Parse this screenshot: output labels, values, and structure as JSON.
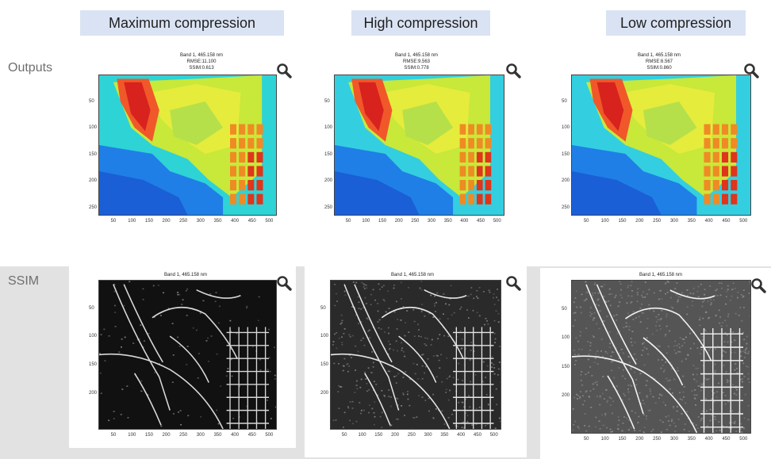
{
  "headers": [
    "Maximum compression",
    "High compression",
    "Low compression"
  ],
  "row_labels": {
    "outputs": "Outputs",
    "ssim": "SSIM"
  },
  "outputs": [
    {
      "band": "Band 1, 465.158 nm",
      "rmse": "RMSE:11.100",
      "ssim": "SSIM:0.613"
    },
    {
      "band": "Band 1, 465.158 nm",
      "rmse": "RMSE:9.563",
      "ssim": "SSIM:0.778"
    },
    {
      "band": "Band 1, 465.158 nm",
      "rmse": "RMSE:6.567",
      "ssim": "SSIM:0.860"
    }
  ],
  "ssim_maps": [
    {
      "band": "Band 1, 465.158 nm"
    },
    {
      "band": "Band 1, 465.158 nm"
    },
    {
      "band": "Band 1, 465.158 nm"
    }
  ],
  "axes": {
    "x_ticks": [
      "50",
      "100",
      "150",
      "200",
      "250",
      "300",
      "350",
      "400",
      "450",
      "500"
    ],
    "y_ticks_outputs": [
      "50",
      "100",
      "150",
      "200",
      "250"
    ],
    "y_ticks_ssim": [
      "50",
      "100",
      "150",
      "200"
    ]
  },
  "icons": {
    "zoom": "magnifier-icon"
  },
  "colors": {
    "header_bg": "#dae3f3",
    "band_gray": "#e2e2e2",
    "label_gray": "#6f6f6f"
  }
}
